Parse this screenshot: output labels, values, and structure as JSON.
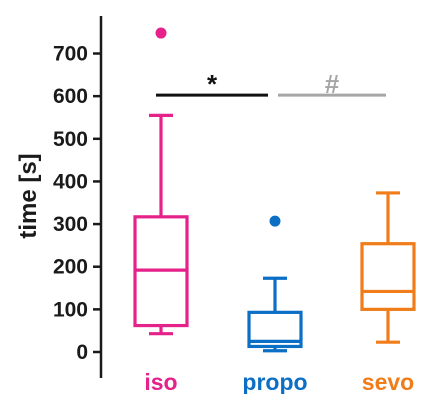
{
  "chart_data": {
    "type": "box",
    "ylabel": "time [s]",
    "ylim": [
      0,
      750
    ],
    "yticks": [
      "0",
      "100",
      "200",
      "300",
      "400",
      "500",
      "600",
      "700"
    ],
    "grid": false,
    "groups": [
      {
        "label": "iso",
        "color": "#e5218a",
        "whisker_low": 43,
        "q1": 62,
        "median": 192,
        "q3": 317,
        "whisker_high": 555,
        "outliers": [
          748
        ]
      },
      {
        "label": "propo",
        "color": "#0b6fc6",
        "whisker_low": 3,
        "q1": 13,
        "median": 25,
        "q3": 93,
        "whisker_high": 173,
        "outliers": [
          307
        ]
      },
      {
        "label": "sevo",
        "color": "#f07d1a",
        "whisker_low": 23,
        "q1": 100,
        "median": 142,
        "q3": 254,
        "whisker_high": 373,
        "outliers": []
      }
    ],
    "annotations": [
      {
        "symbol": "*",
        "color": "#111111",
        "from": "iso",
        "to": "propo",
        "y": 600
      },
      {
        "symbol": "#",
        "color": "#a6a6a6",
        "from": "propo",
        "to": "sevo",
        "y": 600
      }
    ]
  }
}
